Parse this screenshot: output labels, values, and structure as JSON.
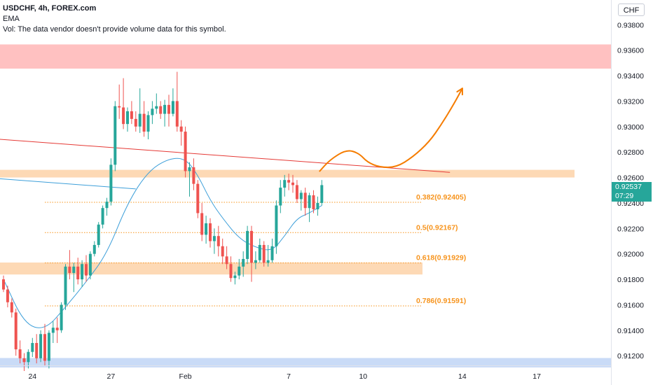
{
  "header": {
    "title": "USDCHF, 4h, FOREX.com",
    "indicator": "EMA",
    "volume_note": "Vol: The data vendor doesn't provide volume data for this symbol."
  },
  "currency_button": "CHF",
  "last_price": {
    "value": "0.92537",
    "countdown": "07:29",
    "color": "#26a69a"
  },
  "colors": {
    "up": "#26a69a",
    "down": "#ef5350",
    "ema": "#3d9fd9",
    "fib": "#f7941d",
    "arrow": "#f57c00",
    "trendline": "#e53935"
  },
  "chart_data": {
    "type": "candlestick",
    "symbol": "USDCHF",
    "timeframe": "4h",
    "ylim": [
      0.9108,
      0.9395
    ],
    "y_ticks": [
      "0.93800",
      "0.93600",
      "0.93400",
      "0.93200",
      "0.93000",
      "0.92800",
      "0.92600",
      "0.92400",
      "0.92200",
      "0.92000",
      "0.91800",
      "0.91600",
      "0.91400",
      "0.91200"
    ],
    "x_ticks": [
      {
        "label": "24",
        "bar": 7
      },
      {
        "label": "27",
        "bar": 26
      },
      {
        "label": "Feb",
        "bar": 44
      },
      {
        "label": "7",
        "bar": 69
      },
      {
        "label": "10",
        "bar": 87
      },
      {
        "label": "14",
        "bar": 111
      },
      {
        "label": "17",
        "bar": 129
      }
    ],
    "candles": [
      [
        0.918,
        0.9183,
        0.917,
        0.9172
      ],
      [
        0.9172,
        0.9175,
        0.9158,
        0.9162
      ],
      [
        0.9162,
        0.9165,
        0.915,
        0.9154
      ],
      [
        0.9154,
        0.9157,
        0.912,
        0.9125
      ],
      [
        0.9125,
        0.9132,
        0.9114,
        0.9118
      ],
      [
        0.9118,
        0.9122,
        0.9108,
        0.9115
      ],
      [
        0.9115,
        0.9125,
        0.911,
        0.9123
      ],
      [
        0.9123,
        0.9134,
        0.9119,
        0.913
      ],
      [
        0.913,
        0.9137,
        0.9114,
        0.9118
      ],
      [
        0.9118,
        0.914,
        0.9115,
        0.9137
      ],
      [
        0.9137,
        0.9145,
        0.9112,
        0.9116
      ],
      [
        0.9116,
        0.914,
        0.911,
        0.9138
      ],
      [
        0.9138,
        0.9147,
        0.913,
        0.9142
      ],
      [
        0.9142,
        0.915,
        0.913,
        0.914
      ],
      [
        0.914,
        0.9162,
        0.9138,
        0.916
      ],
      [
        0.916,
        0.9192,
        0.9156,
        0.919
      ],
      [
        0.919,
        0.9203,
        0.918,
        0.9185
      ],
      [
        0.9185,
        0.9193,
        0.917,
        0.919
      ],
      [
        0.919,
        0.9197,
        0.9176,
        0.918
      ],
      [
        0.918,
        0.9195,
        0.9174,
        0.9192
      ],
      [
        0.9192,
        0.9199,
        0.9178,
        0.9183
      ],
      [
        0.9183,
        0.9202,
        0.918,
        0.92
      ],
      [
        0.92,
        0.921,
        0.9198,
        0.9207
      ],
      [
        0.9207,
        0.9225,
        0.9205,
        0.9223
      ],
      [
        0.9223,
        0.9238,
        0.922,
        0.9236
      ],
      [
        0.9236,
        0.9244,
        0.923,
        0.9241
      ],
      [
        0.9241,
        0.9275,
        0.9238,
        0.927
      ],
      [
        0.927,
        0.932,
        0.9265,
        0.9316
      ],
      [
        0.9316,
        0.9333,
        0.9306,
        0.9315
      ],
      [
        0.9315,
        0.9338,
        0.9298,
        0.9302
      ],
      [
        0.9302,
        0.9315,
        0.9296,
        0.9312
      ],
      [
        0.9312,
        0.932,
        0.9302,
        0.9306
      ],
      [
        0.9306,
        0.9312,
        0.9296,
        0.93
      ],
      [
        0.93,
        0.933,
        0.9295,
        0.931
      ],
      [
        0.931,
        0.932,
        0.9292,
        0.9296
      ],
      [
        0.9296,
        0.9312,
        0.929,
        0.9309
      ],
      [
        0.9309,
        0.932,
        0.9302,
        0.9314
      ],
      [
        0.9314,
        0.9326,
        0.931,
        0.9316
      ],
      [
        0.9316,
        0.932,
        0.9306,
        0.931
      ],
      [
        0.931,
        0.9321,
        0.93,
        0.9317
      ],
      [
        0.9317,
        0.9325,
        0.93,
        0.931
      ],
      [
        0.931,
        0.933,
        0.9308,
        0.932
      ],
      [
        0.932,
        0.9343,
        0.9296,
        0.93
      ],
      [
        0.93,
        0.9305,
        0.9285,
        0.9296
      ],
      [
        0.9296,
        0.93,
        0.926,
        0.9265
      ],
      [
        0.9265,
        0.9272,
        0.9245,
        0.9268
      ],
      [
        0.9268,
        0.9275,
        0.925,
        0.9255
      ],
      [
        0.9255,
        0.9258,
        0.9228,
        0.9232
      ],
      [
        0.9232,
        0.924,
        0.921,
        0.9215
      ],
      [
        0.9215,
        0.923,
        0.9208,
        0.9224
      ],
      [
        0.9224,
        0.9228,
        0.9205,
        0.921
      ],
      [
        0.921,
        0.922,
        0.92,
        0.9214
      ],
      [
        0.9214,
        0.9222,
        0.9198,
        0.9206
      ],
      [
        0.9206,
        0.9212,
        0.9192,
        0.9198
      ],
      [
        0.9198,
        0.9206,
        0.9188,
        0.9192
      ],
      [
        0.9192,
        0.9198,
        0.9178,
        0.9181
      ],
      [
        0.9181,
        0.9186,
        0.9176,
        0.9183
      ],
      [
        0.9183,
        0.9196,
        0.918,
        0.919
      ],
      [
        0.919,
        0.9202,
        0.9182,
        0.9196
      ],
      [
        0.9196,
        0.9222,
        0.9192,
        0.9218
      ],
      [
        0.9218,
        0.9222,
        0.9178,
        0.9193
      ],
      [
        0.9193,
        0.9202,
        0.9188,
        0.9195
      ],
      [
        0.9195,
        0.9212,
        0.9193,
        0.9207
      ],
      [
        0.9207,
        0.921,
        0.919,
        0.9193
      ],
      [
        0.9193,
        0.9207,
        0.919,
        0.9195
      ],
      [
        0.9195,
        0.9212,
        0.9193,
        0.9206
      ],
      [
        0.9206,
        0.9242,
        0.92,
        0.9238
      ],
      [
        0.9238,
        0.9258,
        0.9232,
        0.9252
      ],
      [
        0.9252,
        0.9262,
        0.9245,
        0.9258
      ],
      [
        0.9258,
        0.9263,
        0.925,
        0.9256
      ],
      [
        0.9256,
        0.9262,
        0.9248,
        0.9254
      ],
      [
        0.9254,
        0.9258,
        0.924,
        0.9243
      ],
      [
        0.9243,
        0.925,
        0.9234,
        0.9248
      ],
      [
        0.9248,
        0.9252,
        0.923,
        0.9236
      ],
      [
        0.9236,
        0.9248,
        0.9225,
        0.9246
      ],
      [
        0.9246,
        0.925,
        0.9232,
        0.9235
      ],
      [
        0.9235,
        0.9245,
        0.923,
        0.924
      ],
      [
        0.924,
        0.9258,
        0.9238,
        0.9254
      ]
    ],
    "ema": [
      [
        0,
        0.918
      ],
      [
        5,
        0.9145
      ],
      [
        10,
        0.914
      ],
      [
        15,
        0.9158
      ],
      [
        20,
        0.9178
      ],
      [
        25,
        0.92
      ],
      [
        30,
        0.924
      ],
      [
        35,
        0.9265
      ],
      [
        40,
        0.9275
      ],
      [
        44,
        0.9275
      ],
      [
        47,
        0.9262
      ],
      [
        50,
        0.9242
      ],
      [
        53,
        0.9228
      ],
      [
        57,
        0.9212
      ],
      [
        61,
        0.9205
      ],
      [
        65,
        0.9202
      ],
      [
        68,
        0.9214
      ],
      [
        71,
        0.9228
      ],
      [
        74,
        0.9232
      ],
      [
        77,
        0.9238
      ]
    ],
    "zones": [
      {
        "name": "resistance-red",
        "y": [
          0.93455,
          0.93645
        ],
        "color": "#ffc1c1"
      },
      {
        "name": "resistance-orange",
        "y": [
          0.926,
          0.9266
        ],
        "color": "#fdd9b5"
      },
      {
        "name": "support-orange",
        "y": [
          0.91838,
          0.91932
        ],
        "color": "#fdd9b5"
      },
      {
        "name": "support-blue",
        "y": [
          0.91108,
          0.91182
        ],
        "color": "#c9dbf7"
      }
    ],
    "fib_levels": [
      {
        "ratio": "0.382",
        "value": 0.92405,
        "label": "0.382(0.92405)"
      },
      {
        "ratio": "0.5",
        "value": 0.92167,
        "label": "0.5(0.92167)"
      },
      {
        "ratio": "0.618",
        "value": 0.91929,
        "label": "0.618(0.91929)"
      },
      {
        "ratio": "0.786",
        "value": 0.91591,
        "label": "0.786(0.91591)"
      }
    ],
    "trendlines": [
      {
        "name": "red-trendline",
        "from": [
          -1,
          0.929
        ],
        "to": [
          108,
          0.9264
        ],
        "color": "#e53935"
      },
      {
        "name": "blue-line",
        "from": [
          -1,
          0.9259
        ],
        "to": [
          32,
          0.9251
        ],
        "color": "#3d9fd9"
      }
    ],
    "projection_arrow": [
      [
        76.5,
        0.9265
      ],
      [
        79,
        0.9274
      ],
      [
        83,
        0.9282
      ],
      [
        86,
        0.9279
      ],
      [
        88,
        0.9272
      ],
      [
        91,
        0.9268
      ],
      [
        95,
        0.9268
      ],
      [
        99,
        0.9276
      ],
      [
        103,
        0.9288
      ],
      [
        106,
        0.9302
      ],
      [
        109,
        0.9318
      ],
      [
        111,
        0.933
      ]
    ]
  }
}
